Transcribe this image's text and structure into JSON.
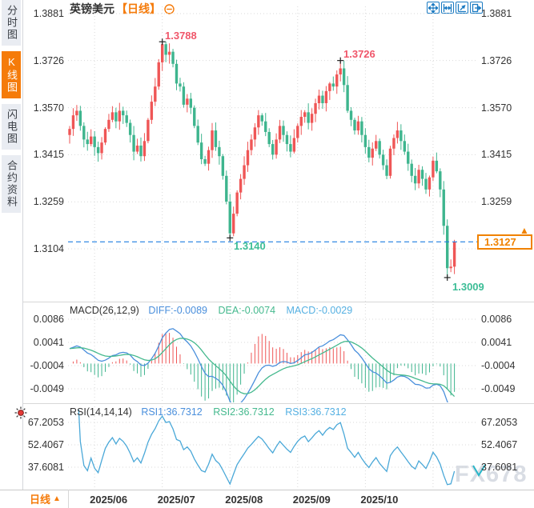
{
  "window": {
    "symbol": "英镑美元",
    "period": "【日线】"
  },
  "sidebar": {
    "tabs": [
      {
        "label": "分时图",
        "active": false
      },
      {
        "label": "K线图",
        "active": true
      },
      {
        "label": "闪电图",
        "active": false
      },
      {
        "label": "合约资料",
        "active": false
      }
    ]
  },
  "toolbar": {
    "icon_names": [
      "pan-icon",
      "fit-x-axis-icon",
      "fit-y-axis-icon",
      "shift-right-icon"
    ]
  },
  "title_icons": [
    "collapse-circle-icon"
  ],
  "indicators": {
    "macd": {
      "title": "MACD(26,12,9)",
      "diff": "DIFF:-0.0089",
      "dea": "DEA:-0.0074",
      "macd": "MACD:-0.0029"
    },
    "rsi": {
      "title": "RSI(14,14,14)",
      "rsi1": "RSI1:36.7312",
      "rsi2": "RSI2:36.7312",
      "rsi3": "RSI3:36.7312"
    }
  },
  "annotations": {
    "high1": "1.3788",
    "high2": "1.3726",
    "low1": "1.3140",
    "low2": "1.3009",
    "last_price": "1.3127"
  },
  "footer": {
    "period": "日线",
    "arrow": "▲"
  },
  "watermark": "FX678",
  "price_arrow": "▲",
  "colors": {
    "up": "#ef5656",
    "down": "#3eb58e",
    "accent_orange": "#f57b0a",
    "price_box": "#f08200",
    "dashed_line": "#1f7ee0",
    "diff_line": "#4a8fdc",
    "dea_line": "#45b98e",
    "rsi_line": "#4aa8d8",
    "grid": "#d9d9d9",
    "text": "#333333",
    "anno_high": "#f0566a",
    "anno_low": "#3cbd96",
    "toolbar_blue": "#1a7ac2"
  },
  "chart_data": {
    "type": "candlestick",
    "symbol": "英镑美元 (GBP/USD)",
    "period": "日线 (daily)",
    "panes": [
      "price-candles",
      "MACD(26,12,9)",
      "RSI(14,14,14)"
    ],
    "price_axis_ticks": [
      1.3881,
      1.3726,
      1.357,
      1.3415,
      1.3259,
      1.3104
    ],
    "macd_axis_ticks": [
      0.0086,
      0.0041,
      -0.0004,
      -0.0049
    ],
    "rsi_axis_ticks": [
      67.2053,
      52.4067,
      37.6081
    ],
    "date_ticks": [
      "2025/06",
      "2025/07",
      "2025/08",
      "2025/09",
      "2025/10"
    ],
    "month_start_indices": [
      7,
      26,
      45,
      64,
      83,
      102
    ],
    "key_points": {
      "july_high": 1.3788,
      "sept_high": 1.3726,
      "aug_low": 1.314,
      "nov_low": 1.3009,
      "last_close": 1.3127
    },
    "macd_values": {
      "DIFF": -0.0089,
      "DEA": -0.0074,
      "MACD": -0.0029
    },
    "rsi_values": {
      "RSI1": 36.7312,
      "RSI2": 36.7312,
      "RSI3": 36.7312
    },
    "closes": [
      1.35,
      1.3545,
      1.356,
      1.351,
      1.3465,
      1.345,
      1.3475,
      1.344,
      1.342,
      1.3455,
      1.35,
      1.353,
      1.3555,
      1.3525,
      1.356,
      1.3545,
      1.352,
      1.348,
      1.3425,
      1.3445,
      1.341,
      1.346,
      1.353,
      1.359,
      1.364,
      1.372,
      1.378,
      1.3745,
      1.3755,
      1.3715,
      1.365,
      1.364,
      1.358,
      1.36,
      1.357,
      1.351,
      1.3455,
      1.34,
      1.3385,
      1.343,
      1.3495,
      1.344,
      1.341,
      1.3345,
      1.326,
      1.3155,
      1.322,
      1.329,
      1.3335,
      1.338,
      1.343,
      1.3465,
      1.3505,
      1.3545,
      1.3525,
      1.349,
      1.345,
      1.3415,
      1.3465,
      1.351,
      1.348,
      1.345,
      1.3425,
      1.347,
      1.351,
      1.354,
      1.3555,
      1.352,
      1.355,
      1.3585,
      1.361,
      1.3585,
      1.3625,
      1.365,
      1.364,
      1.368,
      1.37,
      1.3645,
      1.356,
      1.353,
      1.3495,
      1.3525,
      1.348,
      1.344,
      1.3405,
      1.3435,
      1.346,
      1.3415,
      1.338,
      1.3345,
      1.3435,
      1.347,
      1.3495,
      1.346,
      1.3425,
      1.3385,
      1.3345,
      1.332,
      1.3365,
      1.3335,
      1.33,
      1.334,
      1.3395,
      1.336,
      1.33,
      1.318,
      1.304,
      1.3045,
      1.3127
    ],
    "wick_overrides": {
      "26": {
        "high": 1.3788
      },
      "45": {
        "low": 1.314
      },
      "76": {
        "high": 1.3726
      },
      "106": {
        "low": 1.3009
      }
    }
  }
}
